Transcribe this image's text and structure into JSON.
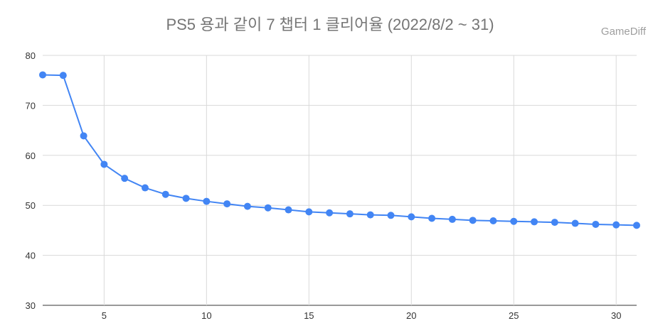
{
  "watermark": "GameDiff",
  "chart_data": {
    "type": "line",
    "title": "PS5 용과 같이 7 챕터 1 클리어율 (2022/8/2 ~ 31)",
    "xlabel": "",
    "ylabel": "",
    "xlim": [
      2,
      31
    ],
    "ylim": [
      30,
      80
    ],
    "xticks": [
      5,
      10,
      15,
      20,
      25,
      30
    ],
    "yticks": [
      30,
      40,
      50,
      60,
      70,
      80
    ],
    "grid": true,
    "legend": "none",
    "series": [
      {
        "color": "#4285f4",
        "x": [
          2,
          3,
          4,
          5,
          6,
          7,
          8,
          9,
          10,
          11,
          12,
          13,
          14,
          15,
          16,
          17,
          18,
          19,
          20,
          21,
          22,
          23,
          24,
          25,
          26,
          27,
          28,
          29,
          30,
          31
        ],
        "values": [
          76.1,
          76.0,
          63.9,
          58.2,
          55.4,
          53.5,
          52.2,
          51.4,
          50.8,
          50.3,
          49.8,
          49.5,
          49.1,
          48.7,
          48.5,
          48.3,
          48.1,
          48.0,
          47.7,
          47.4,
          47.2,
          47.0,
          46.9,
          46.8,
          46.7,
          46.6,
          46.4,
          46.2,
          46.1,
          46.0
        ]
      }
    ]
  }
}
